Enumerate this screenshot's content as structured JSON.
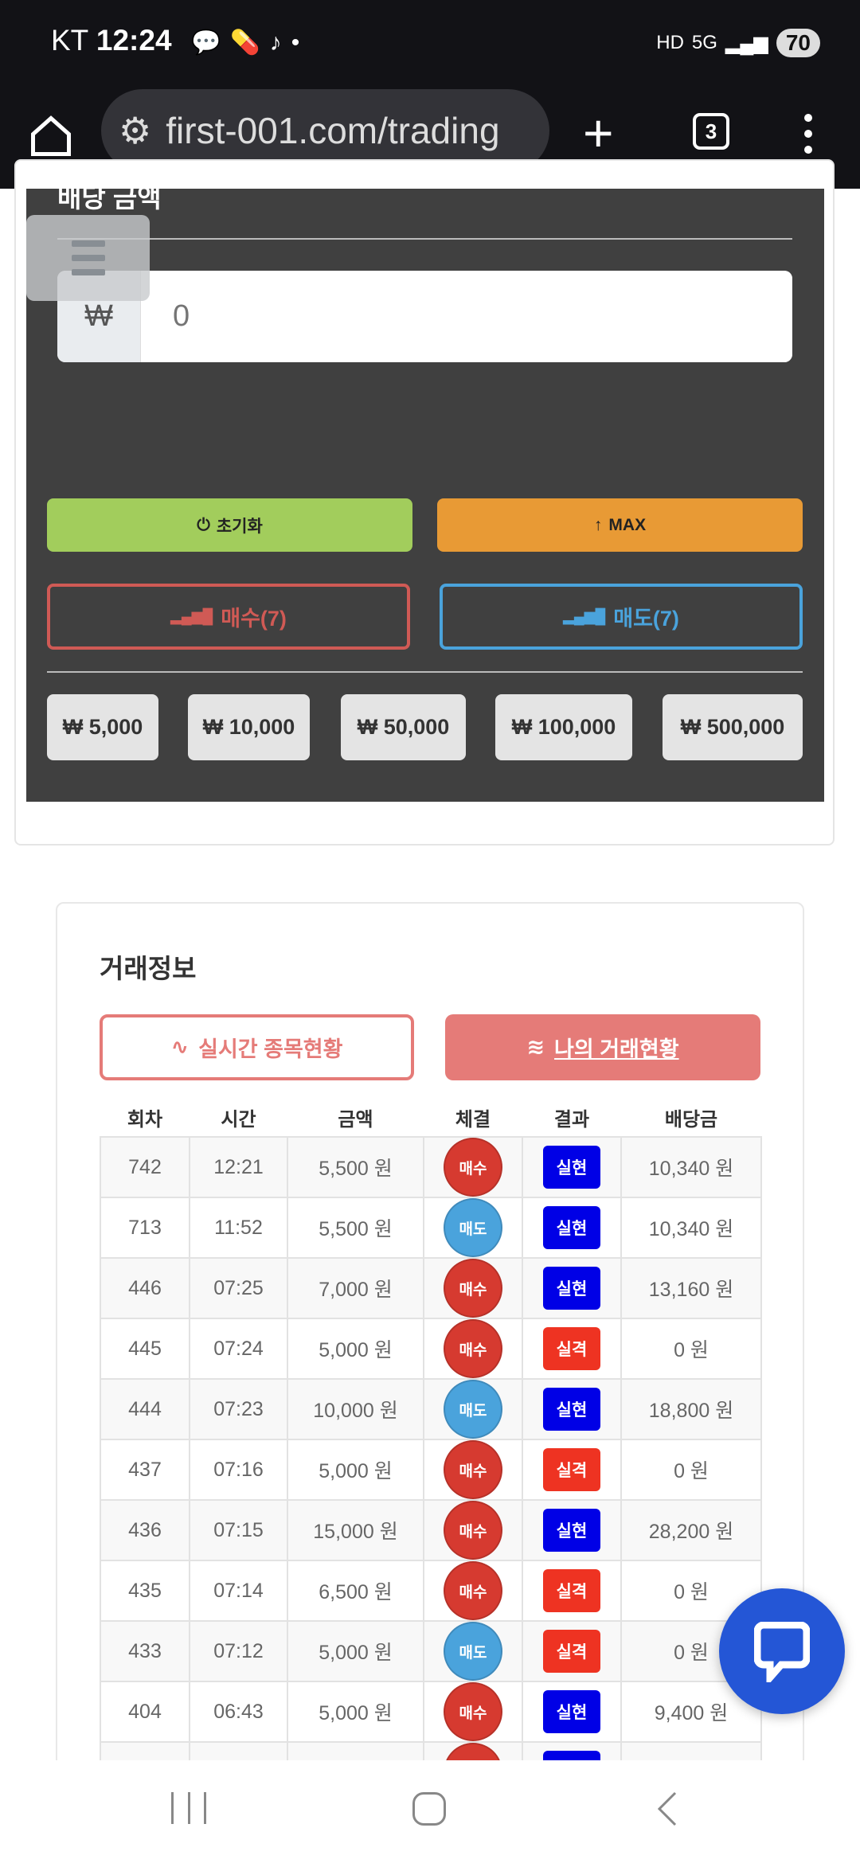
{
  "status_bar": {
    "carrier": "KT",
    "time": "12:24",
    "battery": "70",
    "network": "5G",
    "hd": "HD"
  },
  "browser": {
    "url": "first-001.com/trading",
    "tab_count": "3"
  },
  "bet_panel": {
    "amount_label": "배당 금액",
    "currency_symbol": "₩",
    "amount_placeholder": "0",
    "reset_label": "초기화",
    "max_label": "MAX",
    "buy_label": "매수(7)",
    "sell_label": "매도(7)",
    "chips": [
      "₩ 5,000",
      "₩ 10,000",
      "₩ 50,000",
      "₩ 100,000",
      "₩ 500,000"
    ]
  },
  "trade_info": {
    "title": "거래정보",
    "tabs": [
      {
        "label": "실시간 종목현황",
        "active": false
      },
      {
        "label": "나의 거래현황",
        "active": true
      }
    ],
    "columns": [
      "회차",
      "시간",
      "금액",
      "체결",
      "결과",
      "배당금"
    ],
    "rows": [
      {
        "round": "742",
        "time": "12:21",
        "amount": "5,500 원",
        "side": "매수",
        "result": "실현",
        "payout": "10,340 원"
      },
      {
        "round": "713",
        "time": "11:52",
        "amount": "5,500 원",
        "side": "매도",
        "result": "실현",
        "payout": "10,340 원"
      },
      {
        "round": "446",
        "time": "07:25",
        "amount": "7,000 원",
        "side": "매수",
        "result": "실현",
        "payout": "13,160 원"
      },
      {
        "round": "445",
        "time": "07:24",
        "amount": "5,000 원",
        "side": "매수",
        "result": "실격",
        "payout": "0 원"
      },
      {
        "round": "444",
        "time": "07:23",
        "amount": "10,000 원",
        "side": "매도",
        "result": "실현",
        "payout": "18,800 원"
      },
      {
        "round": "437",
        "time": "07:16",
        "amount": "5,000 원",
        "side": "매수",
        "result": "실격",
        "payout": "0 원"
      },
      {
        "round": "436",
        "time": "07:15",
        "amount": "15,000 원",
        "side": "매수",
        "result": "실현",
        "payout": "28,200 원"
      },
      {
        "round": "435",
        "time": "07:14",
        "amount": "6,500 원",
        "side": "매수",
        "result": "실격",
        "payout": "0 원"
      },
      {
        "round": "433",
        "time": "07:12",
        "amount": "5,000 원",
        "side": "매도",
        "result": "실격",
        "payout": "0 원"
      },
      {
        "round": "404",
        "time": "06:43",
        "amount": "5,000 원",
        "side": "매수",
        "result": "실현",
        "payout": "9,400 원"
      },
      {
        "round": "",
        "time": "",
        "amount": "",
        "side": "매수",
        "result": "실현",
        "payout": ""
      }
    ]
  },
  "colors": {
    "buy": "#d63a30",
    "sell": "#4aa3dc",
    "win": "#0000e6",
    "lose": "#ee3322",
    "reset": "#a2cd5c",
    "max": "#e89a35",
    "tab": "#e57b78",
    "chat": "#2456d6"
  }
}
